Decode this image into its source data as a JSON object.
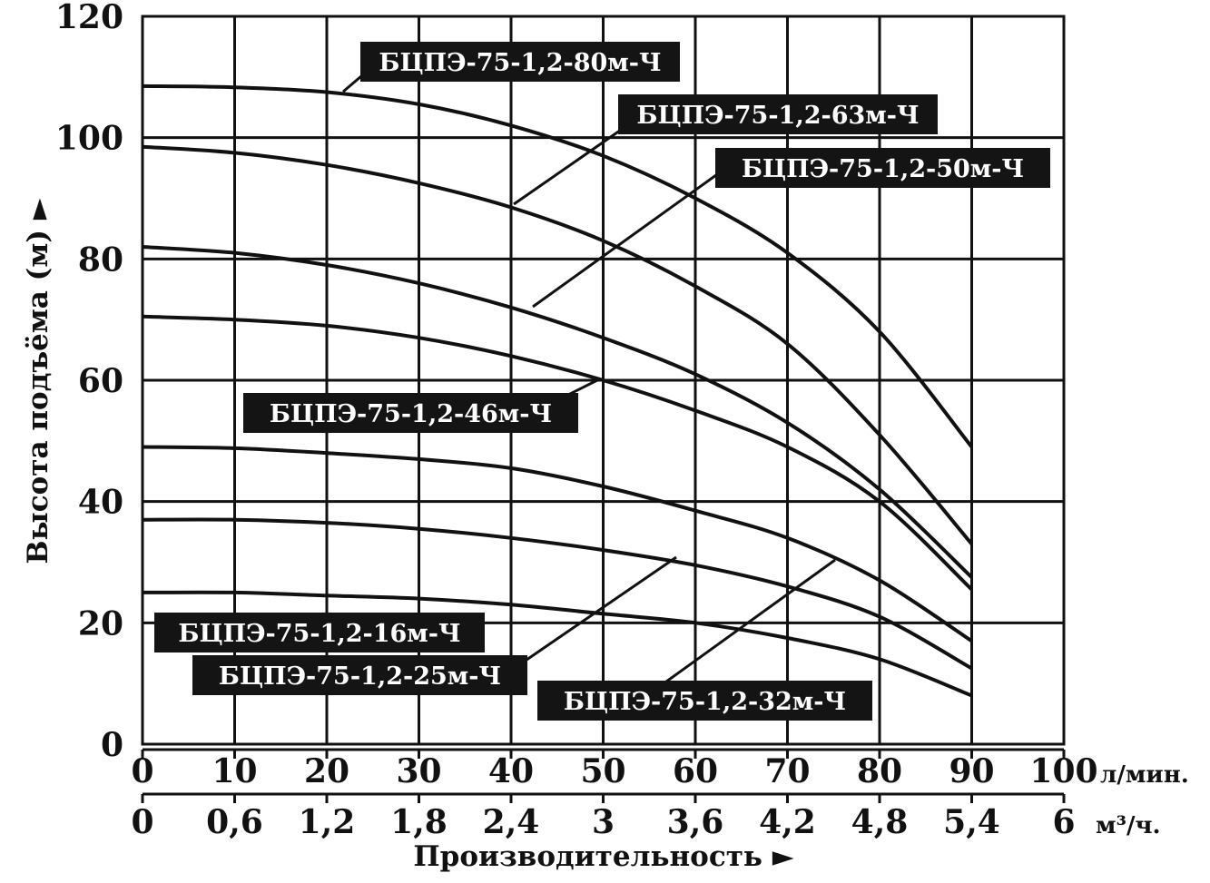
{
  "chart_data": {
    "type": "line",
    "ylabel": "Высота подъёма (м) ►",
    "xlabel": "Производительность ►",
    "x_unit": "л/мин.",
    "x2_unit": "м³/ч.",
    "xlim": [
      0,
      100
    ],
    "ylim": [
      0,
      120
    ],
    "grid": true,
    "x_ticks": [
      "0",
      "10",
      "20",
      "30",
      "40",
      "50",
      "60",
      "70",
      "80",
      "90",
      "100"
    ],
    "x2_ticks": [
      "0",
      "0,6",
      "1,2",
      "1,8",
      "2,4",
      "3",
      "3,6",
      "4,2",
      "4,8",
      "5,4",
      "6"
    ],
    "y_ticks": [
      "0",
      "20",
      "40",
      "60",
      "80",
      "100",
      "120"
    ],
    "x": [
      0,
      10,
      20,
      30,
      40,
      50,
      60,
      70,
      80,
      90
    ],
    "series": [
      {
        "name": "БЦПЭ-75-1,2-80м-Ч",
        "values": [
          108.5,
          108.3,
          107.5,
          105.5,
          102,
          97,
          90,
          81,
          68,
          49
        ]
      },
      {
        "name": "БЦПЭ-75-1,2-63м-Ч",
        "values": [
          98.5,
          97.5,
          95.5,
          92.5,
          88.5,
          83,
          75.5,
          66,
          51,
          33
        ]
      },
      {
        "name": "БЦПЭ-75-1,2-50м-Ч",
        "values": [
          82,
          81,
          79,
          76,
          72,
          67,
          61,
          53,
          42,
          27.5
        ]
      },
      {
        "name": "БЦПЭ-75-1,2-46м-Ч",
        "values": [
          70.5,
          70,
          69,
          67,
          64,
          60,
          55,
          49,
          40,
          25.5
        ]
      },
      {
        "name": "БЦПЭ-75-1,2-32м-Ч",
        "values": [
          49,
          48.8,
          48,
          47,
          45.5,
          42.5,
          38.5,
          34,
          27,
          17
        ]
      },
      {
        "name": "БЦПЭ-75-1,2-25м-Ч",
        "values": [
          37,
          37,
          36.5,
          35.5,
          34,
          32,
          29.5,
          26,
          21,
          12.5
        ]
      },
      {
        "name": "БЦПЭ-75-1,2-16м-Ч",
        "values": [
          25,
          25,
          24.5,
          24,
          23,
          21.5,
          20,
          17.5,
          14,
          8
        ]
      }
    ]
  }
}
